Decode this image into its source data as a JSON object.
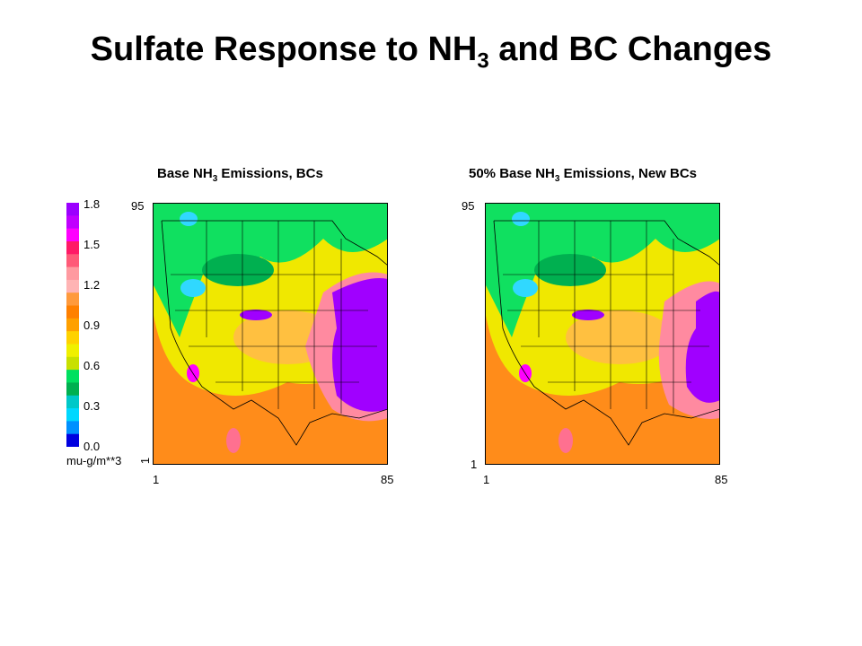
{
  "title": {
    "text": "Sulfate Response to NH",
    "subscript": "3",
    "text_after": " and BC Changes"
  },
  "colorbar": {
    "ticks": [
      "1.8",
      "1.5",
      "1.2",
      "0.9",
      "0.6",
      "0.3",
      "0.0"
    ],
    "unit": "mu-g/m**3"
  },
  "panels": [
    {
      "title": {
        "text": "Base NH",
        "subscript": "3",
        "text_after": " Emissions, BCs"
      },
      "y_top": "95",
      "y_bottom": "1",
      "x_left": "1",
      "x_right": "85"
    },
    {
      "title": {
        "text": "50% Base NH",
        "subscript": "3",
        "text_after": " Emissions, New BCs"
      },
      "y_top": "95",
      "y_bottom": "1",
      "x_left": "1",
      "x_right": "85"
    }
  ]
}
